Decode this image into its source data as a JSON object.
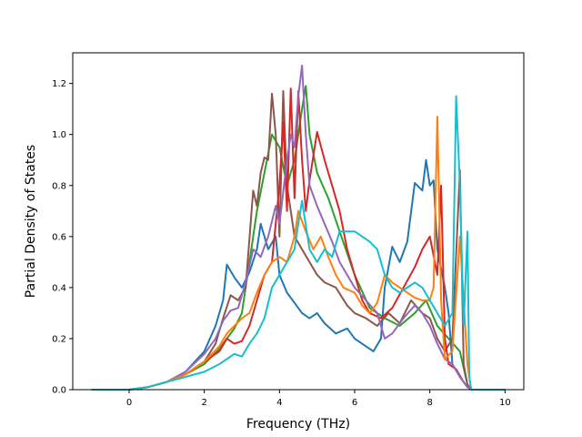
{
  "chart_data": {
    "type": "line",
    "title": "",
    "xlabel": "Frequency (THz)",
    "ylabel": "Partial Density of States",
    "xlim": [
      -1.5,
      10.5
    ],
    "ylim": [
      0.0,
      1.32
    ],
    "xticks": [
      0,
      2,
      4,
      6,
      8,
      10
    ],
    "yticks": [
      0.0,
      0.2,
      0.4,
      0.6,
      0.8,
      1.0,
      1.2
    ],
    "xtick_labels": [
      "0",
      "2",
      "4",
      "6",
      "8",
      "10"
    ],
    "ytick_labels": [
      "0.0",
      "0.2",
      "0.4",
      "0.6",
      "0.8",
      "1.0",
      "1.2"
    ],
    "grid": false,
    "legend": null,
    "series": [
      {
        "color": "#2ca02c",
        "points": [
          [
            -1,
            0
          ],
          [
            0,
            0
          ],
          [
            0.5,
            0.01
          ],
          [
            1,
            0.03
          ],
          [
            1.5,
            0.06
          ],
          [
            2,
            0.1
          ],
          [
            2.4,
            0.16
          ],
          [
            2.8,
            0.24
          ],
          [
            3.0,
            0.3
          ],
          [
            3.2,
            0.5
          ],
          [
            3.4,
            0.7
          ],
          [
            3.6,
            0.85
          ],
          [
            3.8,
            1.0
          ],
          [
            4.0,
            0.95
          ],
          [
            4.2,
            0.8
          ],
          [
            4.4,
            0.9
          ],
          [
            4.6,
            1.1
          ],
          [
            4.7,
            1.19
          ],
          [
            4.8,
            1.0
          ],
          [
            5.0,
            0.85
          ],
          [
            5.3,
            0.75
          ],
          [
            5.6,
            0.62
          ],
          [
            6.0,
            0.45
          ],
          [
            6.4,
            0.32
          ],
          [
            6.8,
            0.28
          ],
          [
            7.2,
            0.25
          ],
          [
            7.6,
            0.3
          ],
          [
            7.9,
            0.35
          ],
          [
            8.2,
            0.25
          ],
          [
            8.5,
            0.2
          ],
          [
            8.8,
            0.15
          ],
          [
            9.0,
            0.02
          ],
          [
            9.1,
            0
          ],
          [
            10,
            0
          ]
        ]
      },
      {
        "color": "#1f77b4",
        "points": [
          [
            -1,
            0
          ],
          [
            0,
            0
          ],
          [
            0.5,
            0.01
          ],
          [
            1,
            0.03
          ],
          [
            1.5,
            0.07
          ],
          [
            2,
            0.15
          ],
          [
            2.3,
            0.25
          ],
          [
            2.5,
            0.35
          ],
          [
            2.6,
            0.49
          ],
          [
            2.8,
            0.44
          ],
          [
            3.0,
            0.4
          ],
          [
            3.2,
            0.46
          ],
          [
            3.4,
            0.55
          ],
          [
            3.5,
            0.65
          ],
          [
            3.7,
            0.55
          ],
          [
            3.9,
            0.6
          ],
          [
            4.0,
            0.45
          ],
          [
            4.2,
            0.38
          ],
          [
            4.4,
            0.34
          ],
          [
            4.6,
            0.3
          ],
          [
            4.8,
            0.28
          ],
          [
            5.0,
            0.3
          ],
          [
            5.2,
            0.26
          ],
          [
            5.5,
            0.22
          ],
          [
            5.8,
            0.24
          ],
          [
            6.0,
            0.2
          ],
          [
            6.2,
            0.18
          ],
          [
            6.5,
            0.15
          ],
          [
            6.7,
            0.2
          ],
          [
            6.8,
            0.4
          ],
          [
            7.0,
            0.56
          ],
          [
            7.2,
            0.5
          ],
          [
            7.4,
            0.58
          ],
          [
            7.6,
            0.81
          ],
          [
            7.8,
            0.78
          ],
          [
            7.9,
            0.9
          ],
          [
            8.0,
            0.8
          ],
          [
            8.1,
            0.82
          ],
          [
            8.2,
            0.55
          ],
          [
            8.4,
            0.4
          ],
          [
            8.5,
            0.3
          ],
          [
            8.6,
            0.1
          ],
          [
            8.8,
            0.05
          ],
          [
            9.0,
            0.01
          ],
          [
            9.1,
            0
          ],
          [
            10,
            0
          ]
        ]
      },
      {
        "color": "#8c564b",
        "points": [
          [
            -1,
            0
          ],
          [
            0,
            0
          ],
          [
            0.5,
            0.01
          ],
          [
            1,
            0.03
          ],
          [
            1.5,
            0.06
          ],
          [
            2,
            0.11
          ],
          [
            2.3,
            0.18
          ],
          [
            2.5,
            0.28
          ],
          [
            2.7,
            0.37
          ],
          [
            2.9,
            0.35
          ],
          [
            3.1,
            0.4
          ],
          [
            3.3,
            0.78
          ],
          [
            3.4,
            0.72
          ],
          [
            3.5,
            0.85
          ],
          [
            3.6,
            0.91
          ],
          [
            3.7,
            0.9
          ],
          [
            3.8,
            1.16
          ],
          [
            3.9,
            1.0
          ],
          [
            4.0,
            0.6
          ],
          [
            4.1,
            1.17
          ],
          [
            4.2,
            0.8
          ],
          [
            4.4,
            0.6
          ],
          [
            4.6,
            0.55
          ],
          [
            4.8,
            0.5
          ],
          [
            5.0,
            0.45
          ],
          [
            5.2,
            0.42
          ],
          [
            5.5,
            0.4
          ],
          [
            5.8,
            0.33
          ],
          [
            6.0,
            0.3
          ],
          [
            6.3,
            0.28
          ],
          [
            6.6,
            0.25
          ],
          [
            6.9,
            0.3
          ],
          [
            7.2,
            0.26
          ],
          [
            7.5,
            0.35
          ],
          [
            7.8,
            0.3
          ],
          [
            8.0,
            0.28
          ],
          [
            8.2,
            0.2
          ],
          [
            8.4,
            0.15
          ],
          [
            8.6,
            0.2
          ],
          [
            8.8,
            0.86
          ],
          [
            8.9,
            0.1
          ],
          [
            9.0,
            0.02
          ],
          [
            9.1,
            0
          ],
          [
            10,
            0
          ]
        ]
      },
      {
        "color": "#d62728",
        "points": [
          [
            -1,
            0
          ],
          [
            0,
            0
          ],
          [
            0.5,
            0.01
          ],
          [
            1,
            0.03
          ],
          [
            1.5,
            0.06
          ],
          [
            2,
            0.11
          ],
          [
            2.4,
            0.15
          ],
          [
            2.6,
            0.2
          ],
          [
            2.8,
            0.18
          ],
          [
            3.0,
            0.19
          ],
          [
            3.2,
            0.25
          ],
          [
            3.4,
            0.35
          ],
          [
            3.6,
            0.45
          ],
          [
            3.8,
            0.5
          ],
          [
            4.0,
            0.8
          ],
          [
            4.1,
            1.05
          ],
          [
            4.2,
            0.7
          ],
          [
            4.3,
            1.18
          ],
          [
            4.4,
            0.75
          ],
          [
            4.5,
            1.17
          ],
          [
            4.6,
            0.9
          ],
          [
            4.7,
            0.7
          ],
          [
            4.8,
            0.82
          ],
          [
            5.0,
            1.01
          ],
          [
            5.2,
            0.9
          ],
          [
            5.4,
            0.8
          ],
          [
            5.6,
            0.7
          ],
          [
            5.8,
            0.55
          ],
          [
            6.0,
            0.45
          ],
          [
            6.2,
            0.35
          ],
          [
            6.4,
            0.3
          ],
          [
            6.7,
            0.28
          ],
          [
            7.0,
            0.32
          ],
          [
            7.3,
            0.4
          ],
          [
            7.6,
            0.48
          ],
          [
            7.8,
            0.55
          ],
          [
            8.0,
            0.6
          ],
          [
            8.2,
            0.45
          ],
          [
            8.3,
            0.8
          ],
          [
            8.4,
            0.2
          ],
          [
            8.5,
            0.1
          ],
          [
            8.7,
            0.08
          ],
          [
            8.9,
            0.03
          ],
          [
            9.0,
            0.01
          ],
          [
            9.1,
            0
          ],
          [
            10,
            0
          ]
        ]
      },
      {
        "color": "#9467bd",
        "points": [
          [
            -1,
            0
          ],
          [
            0,
            0
          ],
          [
            0.5,
            0.01
          ],
          [
            1,
            0.03
          ],
          [
            1.5,
            0.07
          ],
          [
            2,
            0.14
          ],
          [
            2.3,
            0.2
          ],
          [
            2.5,
            0.27
          ],
          [
            2.7,
            0.31
          ],
          [
            2.9,
            0.32
          ],
          [
            3.1,
            0.42
          ],
          [
            3.3,
            0.55
          ],
          [
            3.5,
            0.52
          ],
          [
            3.7,
            0.6
          ],
          [
            3.9,
            0.72
          ],
          [
            4.0,
            0.65
          ],
          [
            4.2,
            0.9
          ],
          [
            4.3,
            1.0
          ],
          [
            4.4,
            0.95
          ],
          [
            4.5,
            1.15
          ],
          [
            4.6,
            1.27
          ],
          [
            4.7,
            1.0
          ],
          [
            4.8,
            0.8
          ],
          [
            5.0,
            0.72
          ],
          [
            5.2,
            0.65
          ],
          [
            5.4,
            0.58
          ],
          [
            5.6,
            0.5
          ],
          [
            5.8,
            0.45
          ],
          [
            6.0,
            0.4
          ],
          [
            6.3,
            0.35
          ],
          [
            6.6,
            0.3
          ],
          [
            6.8,
            0.2
          ],
          [
            7.0,
            0.22
          ],
          [
            7.3,
            0.28
          ],
          [
            7.6,
            0.33
          ],
          [
            7.8,
            0.3
          ],
          [
            8.0,
            0.25
          ],
          [
            8.2,
            0.18
          ],
          [
            8.4,
            0.12
          ],
          [
            8.6,
            0.1
          ],
          [
            8.8,
            0.05
          ],
          [
            9.0,
            0.01
          ],
          [
            9.1,
            0
          ],
          [
            10,
            0
          ]
        ]
      },
      {
        "color": "#ff7f0e",
        "points": [
          [
            -1,
            0
          ],
          [
            0,
            0
          ],
          [
            0.5,
            0.01
          ],
          [
            1,
            0.03
          ],
          [
            1.5,
            0.06
          ],
          [
            2,
            0.11
          ],
          [
            2.4,
            0.17
          ],
          [
            2.6,
            0.22
          ],
          [
            2.8,
            0.25
          ],
          [
            3.0,
            0.28
          ],
          [
            3.2,
            0.3
          ],
          [
            3.4,
            0.38
          ],
          [
            3.6,
            0.45
          ],
          [
            3.8,
            0.5
          ],
          [
            4.0,
            0.52
          ],
          [
            4.2,
            0.5
          ],
          [
            4.4,
            0.6
          ],
          [
            4.5,
            0.7
          ],
          [
            4.7,
            0.62
          ],
          [
            4.9,
            0.55
          ],
          [
            5.1,
            0.6
          ],
          [
            5.3,
            0.52
          ],
          [
            5.5,
            0.45
          ],
          [
            5.7,
            0.4
          ],
          [
            6.0,
            0.38
          ],
          [
            6.2,
            0.33
          ],
          [
            6.4,
            0.3
          ],
          [
            6.6,
            0.34
          ],
          [
            6.8,
            0.45
          ],
          [
            7.0,
            0.42
          ],
          [
            7.2,
            0.4
          ],
          [
            7.4,
            0.38
          ],
          [
            7.6,
            0.36
          ],
          [
            7.8,
            0.35
          ],
          [
            8.0,
            0.35
          ],
          [
            8.1,
            0.4
          ],
          [
            8.2,
            1.07
          ],
          [
            8.3,
            0.35
          ],
          [
            8.4,
            0.12
          ],
          [
            8.6,
            0.15
          ],
          [
            8.8,
            0.6
          ],
          [
            8.9,
            0.35
          ],
          [
            9.0,
            0.1
          ],
          [
            9.1,
            0
          ],
          [
            10,
            0
          ]
        ]
      },
      {
        "color": "#17becf",
        "points": [
          [
            -1,
            0
          ],
          [
            0,
            0
          ],
          [
            0.5,
            0.01
          ],
          [
            1,
            0.03
          ],
          [
            1.5,
            0.05
          ],
          [
            2,
            0.07
          ],
          [
            2.4,
            0.1
          ],
          [
            2.6,
            0.12
          ],
          [
            2.8,
            0.14
          ],
          [
            3.0,
            0.13
          ],
          [
            3.2,
            0.18
          ],
          [
            3.4,
            0.22
          ],
          [
            3.6,
            0.28
          ],
          [
            3.8,
            0.4
          ],
          [
            4.0,
            0.45
          ],
          [
            4.2,
            0.5
          ],
          [
            4.4,
            0.55
          ],
          [
            4.5,
            0.65
          ],
          [
            4.6,
            0.74
          ],
          [
            4.8,
            0.55
          ],
          [
            5.0,
            0.5
          ],
          [
            5.2,
            0.55
          ],
          [
            5.4,
            0.52
          ],
          [
            5.6,
            0.62
          ],
          [
            5.8,
            0.62
          ],
          [
            6.0,
            0.62
          ],
          [
            6.2,
            0.6
          ],
          [
            6.4,
            0.58
          ],
          [
            6.6,
            0.55
          ],
          [
            6.8,
            0.45
          ],
          [
            7.0,
            0.4
          ],
          [
            7.2,
            0.38
          ],
          [
            7.4,
            0.4
          ],
          [
            7.6,
            0.42
          ],
          [
            7.8,
            0.4
          ],
          [
            8.0,
            0.35
          ],
          [
            8.2,
            0.3
          ],
          [
            8.4,
            0.25
          ],
          [
            8.6,
            0.3
          ],
          [
            8.7,
            1.15
          ],
          [
            8.8,
            0.8
          ],
          [
            8.9,
            0.25
          ],
          [
            9.0,
            0.62
          ],
          [
            9.05,
            0.05
          ],
          [
            9.1,
            0
          ],
          [
            10,
            0
          ]
        ]
      }
    ]
  }
}
